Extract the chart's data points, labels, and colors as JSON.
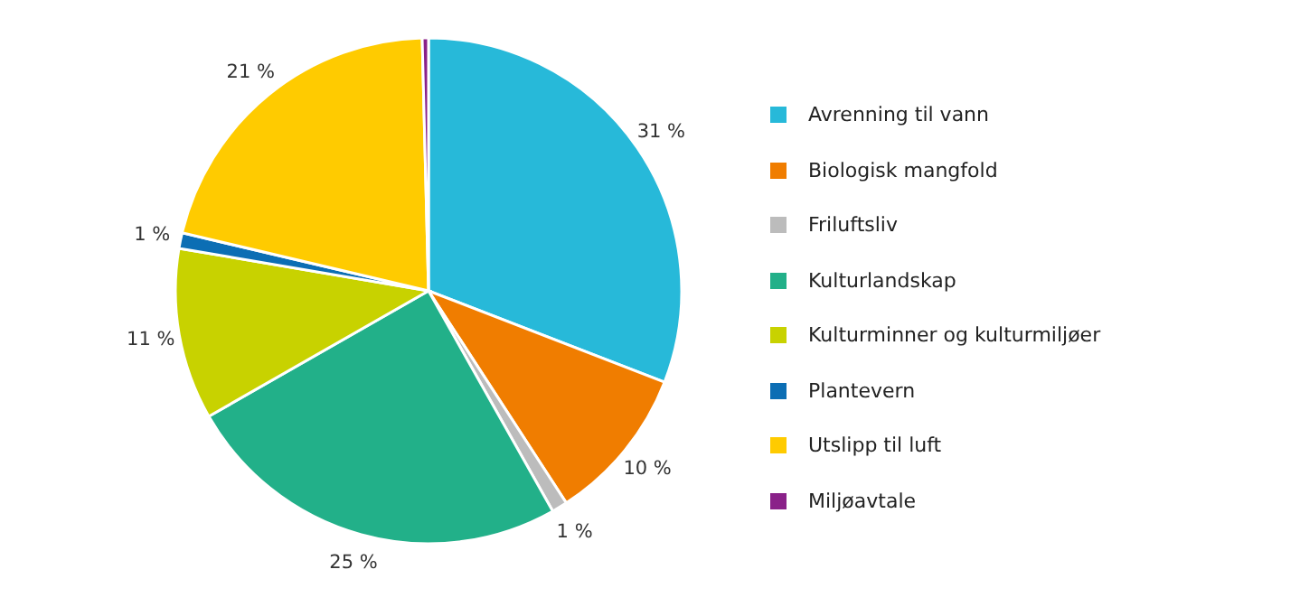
{
  "chart_data": {
    "type": "pie",
    "categories": [
      "Avrenning til vann",
      "Biologisk mangfold",
      "Friluftsliv",
      "Kulturlandskap",
      "Kulturminner og kulturmiljøer",
      "Plantevern",
      "Utslipp til luft",
      "Miljøavtale"
    ],
    "values": [
      31,
      10,
      1,
      25,
      11,
      1,
      21,
      0.4
    ],
    "colors": [
      "#27b9d9",
      "#f07d00",
      "#bcbcbc",
      "#22b089",
      "#c8d200",
      "#0c6eb4",
      "#ffcb00",
      "#8a2189"
    ],
    "value_labels": [
      "31 %",
      "10 %",
      "1 %",
      "25 %",
      "11 %",
      "1 %",
      "21 %",
      null
    ],
    "legend": "right"
  }
}
